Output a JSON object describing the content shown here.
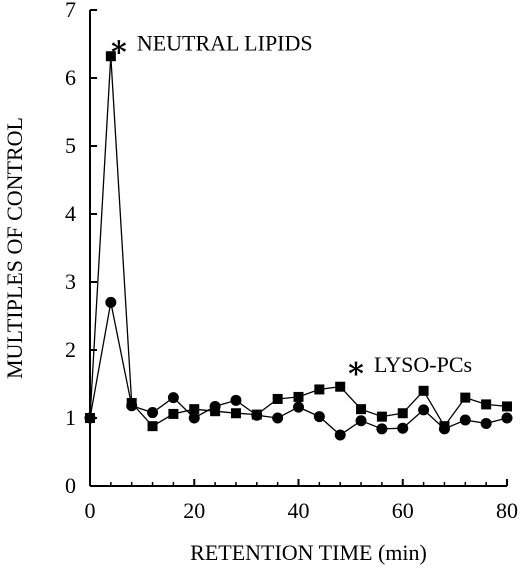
{
  "chart_data": {
    "type": "line",
    "xlabel": "RETENTION TIME (min)",
    "ylabel": "MULTIPLES OF CONTROL",
    "xlim": [
      0,
      80
    ],
    "ylim": [
      0,
      7
    ],
    "xticks": [
      0,
      20,
      40,
      60,
      80
    ],
    "yticks": [
      0,
      1,
      2,
      3,
      4,
      5,
      6,
      7
    ],
    "grid": false,
    "legend": "none",
    "series": [
      {
        "marker": "square",
        "x": [
          0,
          4,
          8,
          12,
          16,
          20,
          24,
          28,
          32,
          36,
          40,
          44,
          48,
          52,
          56,
          60,
          64,
          68,
          72,
          76,
          80
        ],
        "y": [
          1.0,
          6.32,
          1.22,
          0.88,
          1.06,
          1.13,
          1.1,
          1.07,
          1.05,
          1.28,
          1.31,
          1.42,
          1.46,
          1.13,
          1.02,
          1.07,
          1.4,
          0.88,
          1.3,
          1.2,
          1.17
        ]
      },
      {
        "marker": "circle",
        "x": [
          0,
          4,
          8,
          12,
          16,
          20,
          24,
          28,
          32,
          36,
          40,
          44,
          48,
          52,
          56,
          60,
          64,
          68,
          72,
          76,
          80
        ],
        "y": [
          1.0,
          2.7,
          1.18,
          1.08,
          1.3,
          1.0,
          1.17,
          1.26,
          1.04,
          1.0,
          1.16,
          1.02,
          0.75,
          0.96,
          0.84,
          0.85,
          1.12,
          0.84,
          0.97,
          0.92,
          1.0
        ]
      }
    ],
    "annotations": [
      {
        "star": "∗",
        "text": "NEUTRAL LIPIDS",
        "x": 4,
        "y": 6.55
      },
      {
        "star": "∗",
        "text": "LYSO-PCs",
        "x": 49.5,
        "y": 1.82
      }
    ]
  }
}
